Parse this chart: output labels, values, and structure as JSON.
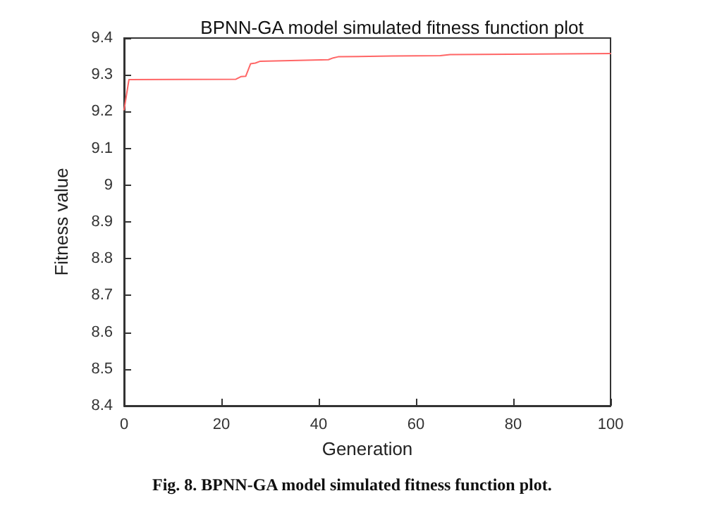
{
  "chart_data": {
    "type": "line",
    "title": "BPNN-GA model simulated fitness function plot",
    "xlabel": "Generation",
    "ylabel": "Fitness value",
    "annotations": [
      "Fig. 8. BPNN-GA model simulated fitness function plot."
    ],
    "x": [
      0,
      1,
      23,
      24,
      25,
      26,
      27,
      28,
      42,
      43,
      44,
      55,
      65,
      67,
      100
    ],
    "series": [
      {
        "color": "#ff6666",
        "values": [
          9.205,
          9.287,
          9.288,
          9.295,
          9.296,
          9.33,
          9.332,
          9.337,
          9.341,
          9.346,
          9.349,
          9.351,
          9.352,
          9.355,
          9.358
        ]
      }
    ],
    "xlim": [
      0,
      100
    ],
    "xticks": [
      0,
      20,
      40,
      60,
      80,
      100
    ],
    "ylim": [
      8.4,
      9.4
    ],
    "yticks": [
      8.4,
      8.5,
      8.6,
      8.7,
      8.8,
      8.9,
      9,
      9.1,
      9.2,
      9.3,
      9.4
    ],
    "grid": false,
    "marker": "none",
    "line_style": "solid"
  }
}
